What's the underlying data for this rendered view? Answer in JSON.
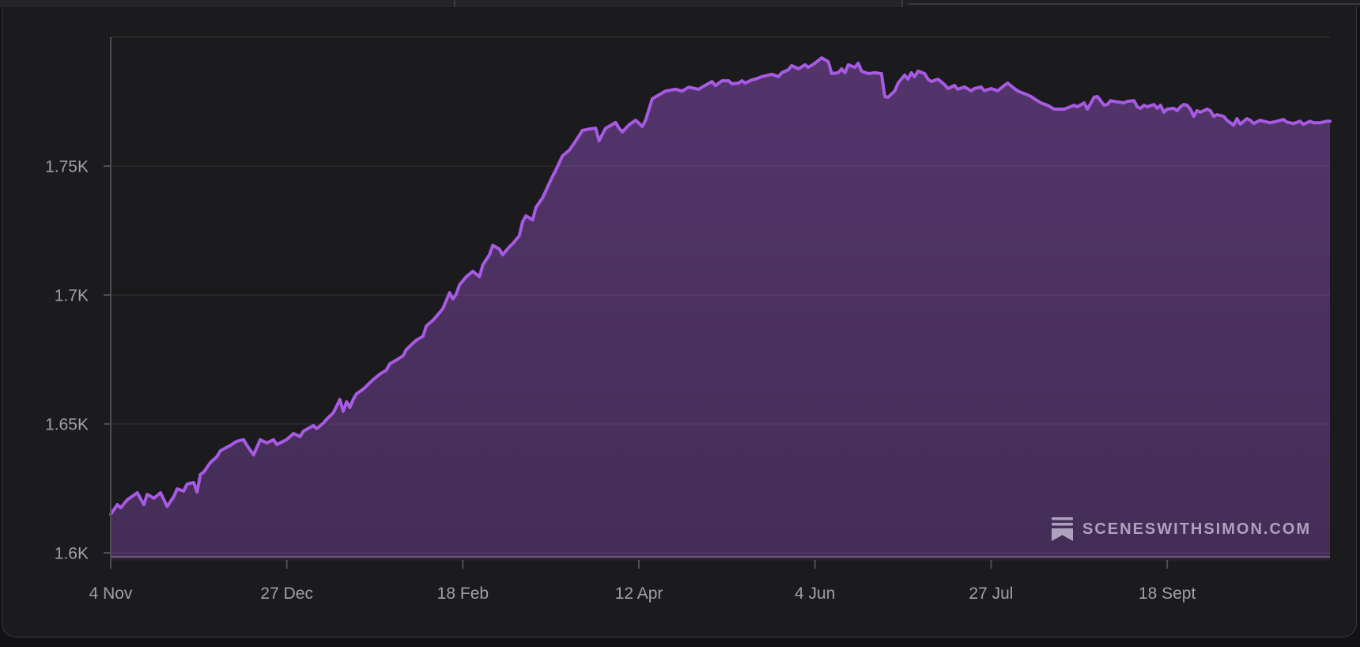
{
  "watermark": {
    "text": "SCENESWITHSIMON.COM",
    "icon": "bookmark-lines-icon"
  },
  "colors": {
    "line": "#a75ae2",
    "fill_top": "rgba(167,90,226,0.40)",
    "fill_bottom": "rgba(167,90,226,0.29)",
    "axis": "#4d4d52",
    "grid": "rgba(255,255,255,0.07)",
    "tick_label": "#a0a0a4",
    "panel_bg": "#1b1b1d",
    "page_bg": "#121214",
    "watermark_text": "rgba(185,174,202,0.9)"
  },
  "chart_data": {
    "type": "area",
    "title": "",
    "xlabel": "",
    "ylabel": "",
    "grid": "horizontal",
    "legend": "none",
    "ylim": [
      1.6,
      1.8
    ],
    "y_gridlines": [
      1.6,
      1.65,
      1.7,
      1.75,
      1.8
    ],
    "y_ticks_labeled": [
      1.6,
      1.65,
      1.7,
      1.75
    ],
    "y_tick_labels": [
      "1.6K",
      "1.65K",
      "1.7K",
      "1.75K"
    ],
    "x_tick_labels": [
      "4 Nov",
      "27 Dec",
      "18 Feb",
      "12 Apr",
      "4 Jun",
      "27 Jul",
      "18 Sept"
    ],
    "x_tick_days": [
      0,
      53,
      106,
      159,
      212,
      265,
      318
    ],
    "x_total_days": 367,
    "unit": "K",
    "series": [
      {
        "name": "",
        "points": [
          [
            0,
            1.615
          ],
          [
            1,
            1.6168
          ],
          [
            2,
            1.6187
          ],
          [
            3,
            1.6175
          ],
          [
            5,
            1.6206
          ],
          [
            7,
            1.6224
          ],
          [
            8,
            1.6233
          ],
          [
            10,
            1.6187
          ],
          [
            11,
            1.6227
          ],
          [
            13,
            1.6212
          ],
          [
            15,
            1.6233
          ],
          [
            17,
            1.618
          ],
          [
            19,
            1.6218
          ],
          [
            20,
            1.6248
          ],
          [
            22,
            1.624
          ],
          [
            23,
            1.6267
          ],
          [
            25,
            1.6273
          ],
          [
            26,
            1.6236
          ],
          [
            27,
            1.6304
          ],
          [
            28,
            1.6313
          ],
          [
            30,
            1.635
          ],
          [
            32,
            1.6374
          ],
          [
            33,
            1.6396
          ],
          [
            36,
            1.6417
          ],
          [
            38,
            1.6433
          ],
          [
            40,
            1.6439
          ],
          [
            41,
            1.6417
          ],
          [
            43,
            1.638
          ],
          [
            45,
            1.6439
          ],
          [
            47,
            1.6426
          ],
          [
            49,
            1.6439
          ],
          [
            50,
            1.642
          ],
          [
            52,
            1.6433
          ],
          [
            53,
            1.644
          ],
          [
            55,
            1.6463
          ],
          [
            57,
            1.6451
          ],
          [
            58,
            1.6472
          ],
          [
            61,
            1.6494
          ],
          [
            62,
            1.6482
          ],
          [
            64,
            1.6503
          ],
          [
            65,
            1.6518
          ],
          [
            67,
            1.6543
          ],
          [
            69,
            1.6595
          ],
          [
            70,
            1.6549
          ],
          [
            71,
            1.6586
          ],
          [
            72,
            1.6564
          ],
          [
            73,
            1.6595
          ],
          [
            74,
            1.6617
          ],
          [
            76,
            1.6635
          ],
          [
            77,
            1.6647
          ],
          [
            79,
            1.6672
          ],
          [
            81,
            1.6693
          ],
          [
            83,
            1.6709
          ],
          [
            84,
            1.6733
          ],
          [
            86,
            1.6748
          ],
          [
            88,
            1.6764
          ],
          [
            89,
            1.6788
          ],
          [
            90,
            1.6801
          ],
          [
            92,
            1.6825
          ],
          [
            94,
            1.684
          ],
          [
            95,
            1.688
          ],
          [
            97,
            1.6902
          ],
          [
            99,
            1.6932
          ],
          [
            100,
            1.6948
          ],
          [
            102,
            1.7009
          ],
          [
            103,
            1.6985
          ],
          [
            104,
            1.7003
          ],
          [
            105,
            1.704
          ],
          [
            107,
            1.7071
          ],
          [
            109,
            1.7092
          ],
          [
            111,
            1.7071
          ],
          [
            112,
            1.7117
          ],
          [
            114,
            1.7156
          ],
          [
            115,
            1.7193
          ],
          [
            117,
            1.7178
          ],
          [
            118,
            1.7156
          ],
          [
            120,
            1.7187
          ],
          [
            121,
            1.7199
          ],
          [
            123,
            1.723
          ],
          [
            124,
            1.7285
          ],
          [
            125,
            1.7307
          ],
          [
            127,
            1.7291
          ],
          [
            128,
            1.734
          ],
          [
            130,
            1.7377
          ],
          [
            133,
            1.746
          ],
          [
            134,
            1.7485
          ],
          [
            136,
            1.754
          ],
          [
            138,
            1.7561
          ],
          [
            140,
            1.7598
          ],
          [
            142,
            1.7638
          ],
          [
            144,
            1.7644
          ],
          [
            146,
            1.7647
          ],
          [
            147,
            1.7598
          ],
          [
            148,
            1.7623
          ],
          [
            149,
            1.7647
          ],
          [
            152,
            1.7669
          ],
          [
            153,
            1.7647
          ],
          [
            154,
            1.7632
          ],
          [
            156,
            1.766
          ],
          [
            158,
            1.7678
          ],
          [
            160,
            1.7654
          ],
          [
            161,
            1.7678
          ],
          [
            163,
            1.7761
          ],
          [
            165,
            1.7776
          ],
          [
            167,
            1.7791
          ],
          [
            170,
            1.7798
          ],
          [
            172,
            1.7791
          ],
          [
            174,
            1.7806
          ],
          [
            177,
            1.7798
          ],
          [
            178,
            1.7806
          ],
          [
            181,
            1.7828
          ],
          [
            182,
            1.7812
          ],
          [
            184,
            1.7831
          ],
          [
            186,
            1.7831
          ],
          [
            187,
            1.7819
          ],
          [
            189,
            1.7822
          ],
          [
            190,
            1.7831
          ],
          [
            191,
            1.7822
          ],
          [
            193,
            1.7834
          ],
          [
            194,
            1.7837
          ],
          [
            196,
            1.7847
          ],
          [
            197,
            1.785
          ],
          [
            199,
            1.7856
          ],
          [
            201,
            1.7847
          ],
          [
            202,
            1.7862
          ],
          [
            204,
            1.7874
          ],
          [
            205,
            1.789
          ],
          [
            207,
            1.7877
          ],
          [
            209,
            1.7893
          ],
          [
            210,
            1.7883
          ],
          [
            212,
            1.7899
          ],
          [
            214,
            1.792
          ],
          [
            216,
            1.7905
          ],
          [
            217,
            1.7859
          ],
          [
            219,
            1.7862
          ],
          [
            220,
            1.7877
          ],
          [
            221,
            1.7862
          ],
          [
            222,
            1.7893
          ],
          [
            224,
            1.7883
          ],
          [
            225,
            1.7899
          ],
          [
            226,
            1.7868
          ],
          [
            228,
            1.7859
          ],
          [
            230,
            1.7862
          ],
          [
            232,
            1.7859
          ],
          [
            233,
            1.777
          ],
          [
            234,
            1.7767
          ],
          [
            236,
            1.7791
          ],
          [
            237,
            1.7822
          ],
          [
            239,
            1.7853
          ],
          [
            240,
            1.7837
          ],
          [
            241,
            1.7862
          ],
          [
            242,
            1.7847
          ],
          [
            243,
            1.7868
          ],
          [
            245,
            1.7859
          ],
          [
            246,
            1.7837
          ],
          [
            247,
            1.7828
          ],
          [
            249,
            1.7837
          ],
          [
            251,
            1.7816
          ],
          [
            252,
            1.7801
          ],
          [
            254,
            1.7813
          ],
          [
            255,
            1.7798
          ],
          [
            257,
            1.7807
          ],
          [
            259,
            1.7792
          ],
          [
            260,
            1.7801
          ],
          [
            262,
            1.7807
          ],
          [
            263,
            1.7792
          ],
          [
            265,
            1.7801
          ],
          [
            267,
            1.7792
          ],
          [
            269,
            1.7813
          ],
          [
            270,
            1.7822
          ],
          [
            272,
            1.7801
          ],
          [
            273,
            1.7792
          ],
          [
            274,
            1.7786
          ],
          [
            276,
            1.7776
          ],
          [
            277,
            1.777
          ],
          [
            278,
            1.7761
          ],
          [
            280,
            1.7745
          ],
          [
            282,
            1.7736
          ],
          [
            284,
            1.7721
          ],
          [
            287,
            1.7721
          ],
          [
            290,
            1.7736
          ],
          [
            291,
            1.773
          ],
          [
            293,
            1.7745
          ],
          [
            294,
            1.7721
          ],
          [
            296,
            1.7767
          ],
          [
            297,
            1.777
          ],
          [
            299,
            1.7736
          ],
          [
            300,
            1.7739
          ],
          [
            301,
            1.7754
          ],
          [
            302,
            1.7751
          ],
          [
            305,
            1.7745
          ],
          [
            306,
            1.7751
          ],
          [
            308,
            1.7754
          ],
          [
            309,
            1.773
          ],
          [
            310,
            1.7724
          ],
          [
            311,
            1.7736
          ],
          [
            312,
            1.773
          ],
          [
            314,
            1.7739
          ],
          [
            315,
            1.7724
          ],
          [
            316,
            1.7736
          ],
          [
            317,
            1.7709
          ],
          [
            318,
            1.7721
          ],
          [
            320,
            1.7724
          ],
          [
            321,
            1.7715
          ],
          [
            322,
            1.773
          ],
          [
            323,
            1.7739
          ],
          [
            324,
            1.7736
          ],
          [
            325,
            1.7721
          ],
          [
            326,
            1.7693
          ],
          [
            327,
            1.7715
          ],
          [
            328,
            1.7709
          ],
          [
            330,
            1.7721
          ],
          [
            331,
            1.7715
          ],
          [
            332,
            1.7693
          ],
          [
            333,
            1.7699
          ],
          [
            335,
            1.7693
          ],
          [
            336,
            1.7678
          ],
          [
            338,
            1.7659
          ],
          [
            339,
            1.7684
          ],
          [
            340,
            1.7663
          ],
          [
            342,
            1.7684
          ],
          [
            343,
            1.7678
          ],
          [
            344,
            1.7665
          ],
          [
            346,
            1.7678
          ],
          [
            347,
            1.7674
          ],
          [
            349,
            1.7668
          ],
          [
            351,
            1.7674
          ],
          [
            353,
            1.7681
          ],
          [
            354,
            1.7671
          ],
          [
            356,
            1.7665
          ],
          [
            358,
            1.7674
          ],
          [
            359,
            1.7662
          ],
          [
            361,
            1.7674
          ],
          [
            362,
            1.7668
          ],
          [
            364,
            1.7668
          ],
          [
            366,
            1.7674
          ],
          [
            367,
            1.7674
          ]
        ]
      }
    ]
  }
}
